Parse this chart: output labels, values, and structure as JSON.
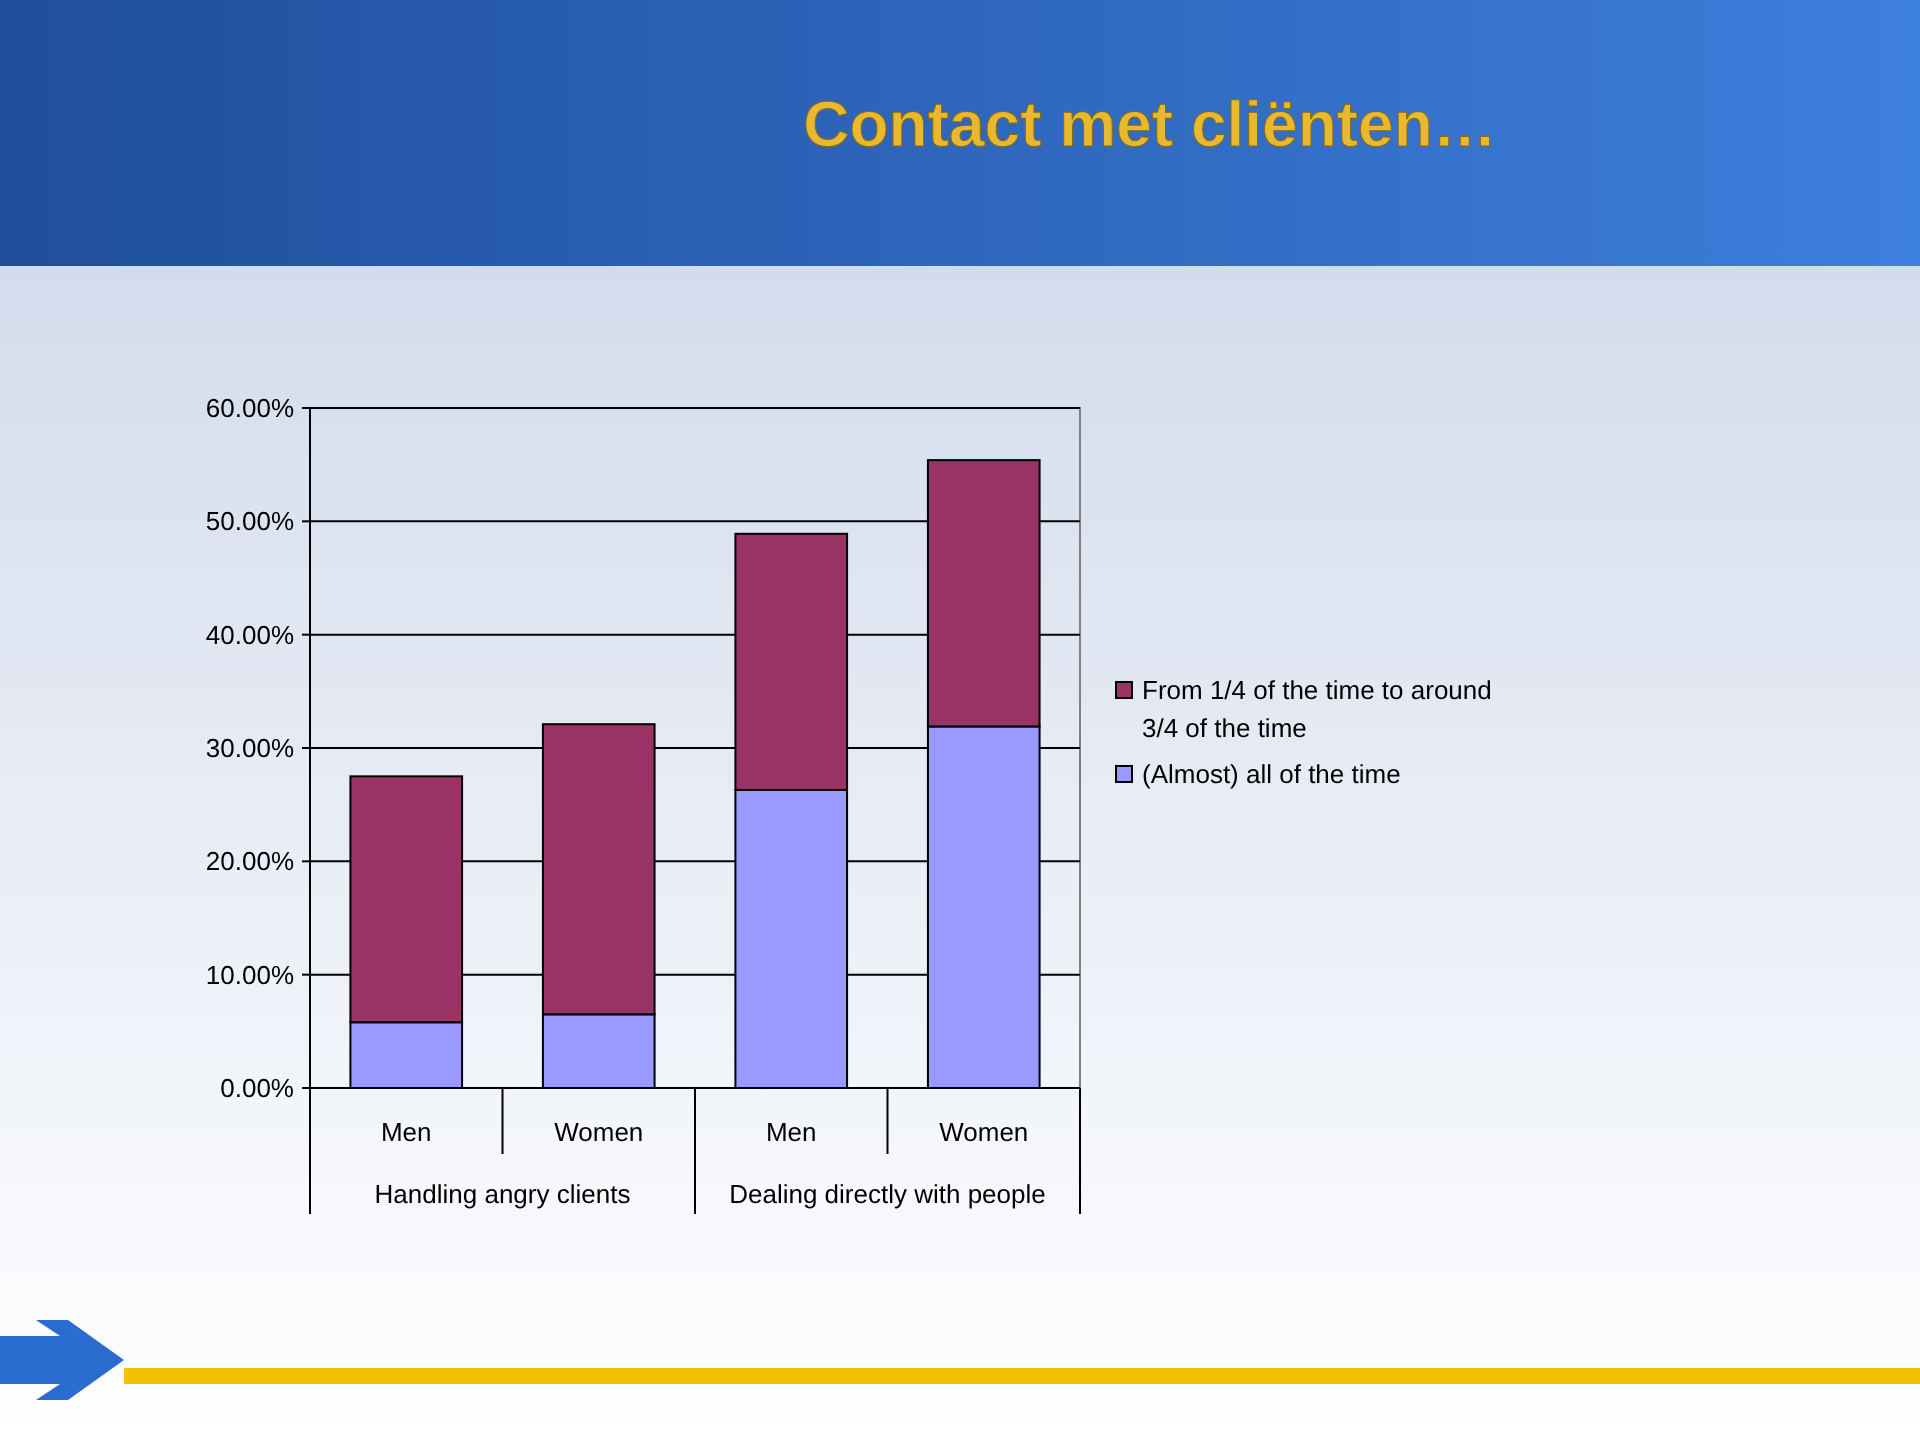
{
  "chart_data": {
    "type": "bar",
    "title": "Contact met cliënten…",
    "categories": [
      "Men",
      "Women",
      "Men",
      "Women"
    ],
    "stacked": true,
    "series": [
      {
        "name": "(Almost) all of the time",
        "color": "#9999ff",
        "values": [
          5.8,
          6.5,
          26.3,
          31.9
        ]
      },
      {
        "name": "From 1/4 of the time to around 3/4 of the time",
        "color": "#993366",
        "values": [
          21.7,
          25.6,
          22.6,
          23.5
        ]
      }
    ],
    "annotations": [
      "Handling angry clients",
      "Dealing directly with people"
    ],
    "ylim": [
      0,
      60
    ],
    "yticks": [
      {
        "value": 0,
        "label": "0.00%"
      },
      {
        "value": 10,
        "label": "10.00%"
      },
      {
        "value": 20,
        "label": "20.00%"
      },
      {
        "value": 30,
        "label": "30.00%"
      },
      {
        "value": 40,
        "label": "40.00%"
      },
      {
        "value": 50,
        "label": "50.00%"
      },
      {
        "value": 60,
        "label": "60.00%"
      }
    ],
    "grid": "y",
    "legend": "right"
  }
}
